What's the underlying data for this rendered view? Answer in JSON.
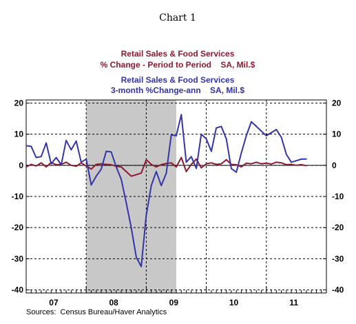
{
  "page_title": "Chart 1",
  "sources": "Sources:  Census Bureau/Haver Analytics",
  "colors": {
    "series1": "#8b1a2e",
    "series2": "#3333aa",
    "recession": "#c8c8c8",
    "grid": "#000000"
  },
  "legend": [
    {
      "line1": "Retail Sales & Food Services",
      "line2": "% Change - Period to Period    SA, Mil.$",
      "color": "#8b1a2e"
    },
    {
      "line1": "Retail Sales & Food Services",
      "line2": "3-month %Change-ann    SA, Mil.$",
      "color": "#3333aa"
    }
  ],
  "chart_data": {
    "type": "line",
    "x_ticks": [
      "07",
      "08",
      "09",
      "10",
      "11"
    ],
    "x_label_months": [
      5.5,
      17.5,
      29.5,
      41.5,
      53.5
    ],
    "x_range_months": [
      0,
      60
    ],
    "shaded_region_months": [
      12,
      30
    ],
    "ylim": [
      -41,
      21
    ],
    "y_ticks": [
      20,
      10,
      0,
      -10,
      -20,
      -30,
      -40
    ],
    "grid": true,
    "series": [
      {
        "name": "% Change - Period to Period",
        "months": [
          0,
          1,
          2,
          3,
          4,
          5,
          6,
          7,
          8,
          9,
          10,
          11,
          12,
          13,
          14,
          15,
          16,
          17,
          18,
          19,
          20,
          21,
          22,
          23,
          24,
          25,
          26,
          27,
          28,
          29,
          30,
          31,
          32,
          33,
          34,
          35,
          36,
          37,
          38,
          39,
          40,
          41,
          42,
          43,
          44,
          45,
          46,
          47,
          48,
          49,
          50,
          51,
          52,
          53,
          54,
          55,
          56
        ],
        "values": [
          -0.5,
          0.3,
          -0.2,
          0.8,
          -0.5,
          0.9,
          0.2,
          0.3,
          1.0,
          0.0,
          -0.3,
          0.8,
          -0.2,
          -1.2,
          0.3,
          0.5,
          0.3,
          0.2,
          -0.3,
          -0.5,
          -2.0,
          -3.5,
          -3.0,
          -2.5,
          1.8,
          0.3,
          -0.5,
          0.2,
          0.6,
          0.8,
          -0.5,
          2.5,
          -2.0,
          0.3,
          2.0,
          -0.8,
          0.5,
          0.8,
          0.3,
          0.5,
          1.8,
          0.3,
          0.2,
          -0.5,
          0.7,
          0.5,
          1.0,
          0.5,
          0.7,
          0.4,
          1.0,
          0.8,
          0.2,
          0.3,
          0.0,
          0.2,
          -0.1
        ]
      },
      {
        "name": "3-month %Change-ann",
        "months": [
          0,
          1,
          2,
          3,
          4,
          5,
          6,
          7,
          8,
          9,
          10,
          11,
          12,
          13,
          14,
          15,
          16,
          17,
          18,
          19,
          20,
          21,
          22,
          23,
          24,
          25,
          26,
          27,
          28,
          29,
          30,
          31,
          32,
          33,
          34,
          35,
          36,
          37,
          38,
          39,
          40,
          41,
          42,
          43,
          44,
          45,
          46,
          47,
          48,
          49,
          50,
          51,
          52,
          53,
          54,
          55,
          56
        ],
        "values": [
          6.3,
          6.1,
          2.5,
          2.8,
          7.2,
          0.5,
          2.5,
          0.2,
          8.0,
          5.0,
          7.8,
          1.0,
          2.0,
          -6.3,
          -3.5,
          -1.2,
          4.5,
          4.3,
          -0.5,
          -4.5,
          -12.0,
          -20.0,
          -29.5,
          -32.5,
          -16.0,
          -6.5,
          -2.0,
          -6.5,
          -2.5,
          9.8,
          9.5,
          16.3,
          1.0,
          2.8,
          -1.0,
          10.0,
          8.5,
          4.5,
          12.0,
          12.5,
          8.5,
          -1.0,
          -2.2,
          4.0,
          9.5,
          14.0,
          12.5,
          11.0,
          9.5,
          10.5,
          11.5,
          9.0,
          3.5,
          1.0,
          1.5,
          2.0,
          2.0
        ]
      }
    ]
  }
}
